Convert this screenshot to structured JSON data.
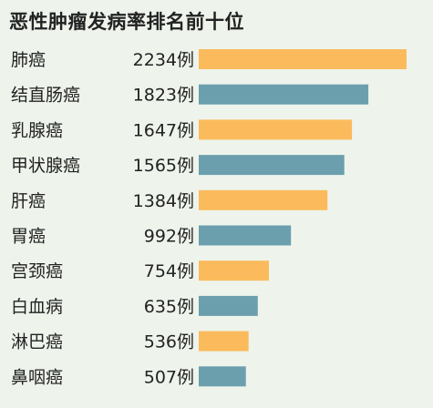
{
  "chart_data": {
    "type": "bar",
    "orientation": "horizontal",
    "title": "恶性肿瘤发病率排名前十位",
    "categories": [
      "肺癌",
      "结直肠癌",
      "乳腺癌",
      "甲状腺癌",
      "肝癌",
      "胃癌",
      "宫颈癌",
      "白血病",
      "淋巴癌",
      "鼻咽癌"
    ],
    "values": [
      2234,
      1823,
      1647,
      1565,
      1384,
      992,
      754,
      635,
      536,
      507
    ],
    "value_unit": "例",
    "value_labels": [
      "2234例",
      "1823例",
      "1647例",
      "1565例",
      "1384例",
      "992例",
      "754例",
      "635例",
      "536例",
      "507例"
    ],
    "colors": [
      "#fbbb5c",
      "#6b9fae",
      "#fbbb5c",
      "#6b9fae",
      "#fbbb5c",
      "#6b9fae",
      "#fbbb5c",
      "#6b9fae",
      "#fbbb5c",
      "#6b9fae"
    ],
    "xlim": [
      0,
      2234
    ],
    "grid": false,
    "legend": "none"
  }
}
